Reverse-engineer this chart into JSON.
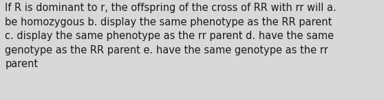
{
  "text": "If R is dominant to r, the offspring of the cross of RR with rr will a.\nbe homozygous b. display the same phenotype as the RR parent\nc. display the same phenotype as the rr parent d. have the same\ngenotype as the RR parent e. have the same genotype as the rr\nparent",
  "background_color": "#d8d8d8",
  "text_color": "#1a1a1a",
  "font_size": 10.5,
  "font_family": "sans-serif",
  "fig_width": 5.58,
  "fig_height": 1.46,
  "dpi": 100
}
